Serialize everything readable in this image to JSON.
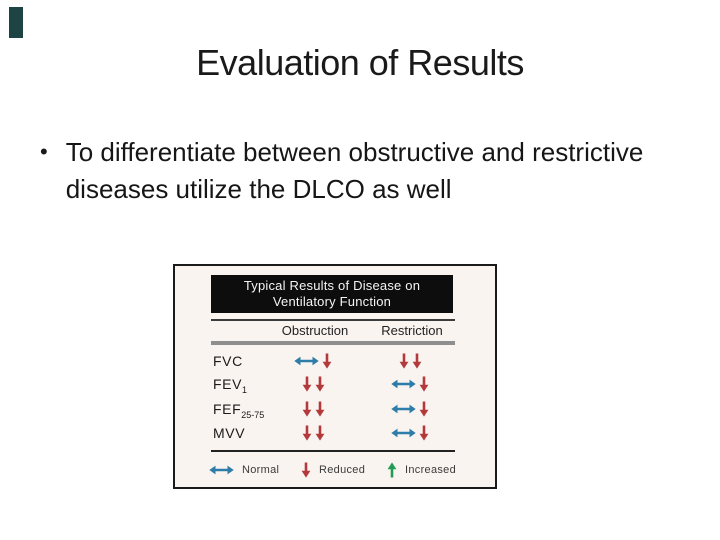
{
  "slide": {
    "title": "Evaluation of Results",
    "bullet": "To differentiate between obstructive and restrictive diseases utilize the DLCO as well",
    "bullet_marker": "•"
  },
  "decoration": {
    "corner_color": "#1d4343"
  },
  "figure": {
    "title_line1": "Typical Results of Disease on",
    "title_line2": "Ventilatory Function",
    "columns": [
      "Obstruction",
      "Restriction"
    ],
    "rows": [
      {
        "label": "FVC",
        "sub": "",
        "obstruction": [
          "normal",
          "down"
        ],
        "restriction": [
          "down",
          "down"
        ]
      },
      {
        "label": "FEV",
        "sub": "1",
        "obstruction": [
          "down",
          "down"
        ],
        "restriction": [
          "normal",
          "down"
        ]
      },
      {
        "label": "FEF",
        "sub": "25-75",
        "obstruction": [
          "down",
          "down"
        ],
        "restriction": [
          "normal",
          "down"
        ]
      },
      {
        "label": "MVV",
        "sub": "",
        "obstruction": [
          "down",
          "down"
        ],
        "restriction": [
          "normal",
          "down"
        ]
      }
    ],
    "legend": [
      {
        "symbol": "normal",
        "label": "Normal"
      },
      {
        "symbol": "down",
        "label": "Reduced"
      },
      {
        "symbol": "up",
        "label": "Increased"
      }
    ],
    "colors": {
      "normal_arrow": "#2d7da8",
      "reduced_arrow": "#b23a3c",
      "increased_arrow": "#239b55"
    }
  }
}
